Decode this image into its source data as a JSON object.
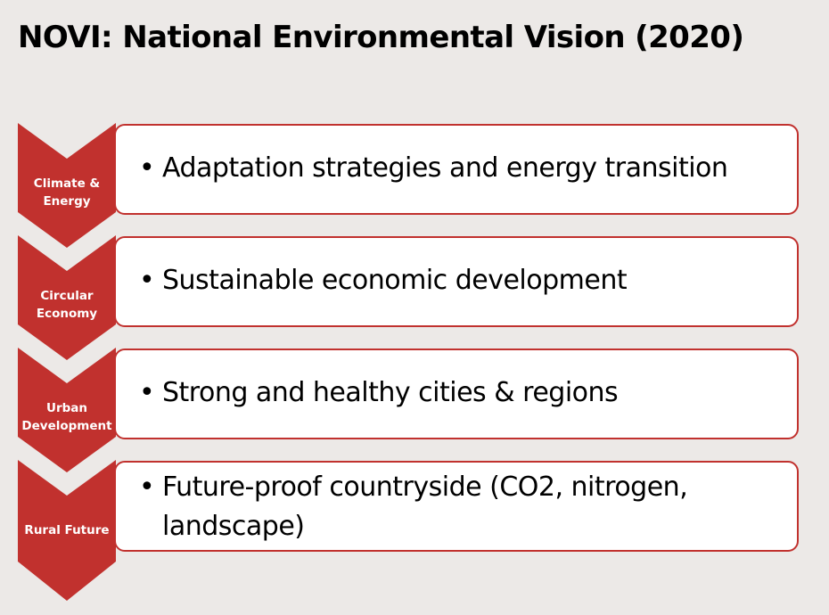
{
  "title": "NOVI: National Environmental Vision (2020)",
  "colors": {
    "background": "#ece9e7",
    "accent": "#c1312e",
    "box": "#ffffff"
  },
  "steps": [
    {
      "label": "Climate &\nEnergy",
      "text": "Adaptation strategies and energy transition"
    },
    {
      "label": "Circular\nEconomy",
      "text": "Sustainable economic development"
    },
    {
      "label": "Urban\nDevelopment",
      "text": "Strong and healthy cities & regions"
    },
    {
      "label": "Rural Future",
      "text": "Future-proof countryside (CO2, nitrogen,\nlandscape)"
    }
  ]
}
